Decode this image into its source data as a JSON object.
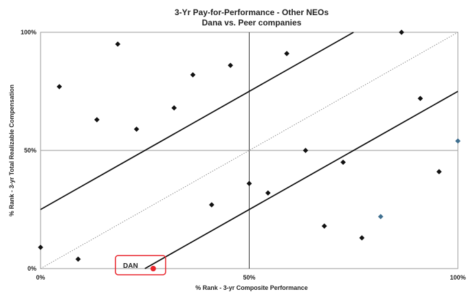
{
  "chart_data": {
    "type": "scatter",
    "title": "3-Yr Pay-for-Performance - Other NEOs",
    "subtitle": "Dana vs. Peer companies",
    "xlabel": "% Rank - 3-yr Composite Performance",
    "ylabel": "% Rank - 3-yr Total Realizable Compensation",
    "xlim": [
      0,
      100
    ],
    "ylim": [
      0,
      100
    ],
    "x_ticks": [
      {
        "value": 0,
        "label": "0%"
      },
      {
        "value": 50,
        "label": "50%"
      },
      {
        "value": 100,
        "label": "100%"
      }
    ],
    "y_ticks": [
      {
        "value": 0,
        "label": "0%"
      },
      {
        "value": 50,
        "label": "50%"
      },
      {
        "value": 100,
        "label": "100%"
      }
    ],
    "grid": "quadrant lines at 50%",
    "reference_lines": [
      {
        "kind": "upper band",
        "style": "solid",
        "from": [
          0,
          25
        ],
        "to": [
          75,
          100
        ]
      },
      {
        "kind": "diagonal",
        "style": "dotted",
        "from": [
          0,
          0
        ],
        "to": [
          100,
          100
        ]
      },
      {
        "kind": "lower band",
        "style": "solid",
        "from": [
          25,
          0
        ],
        "to": [
          100,
          75
        ]
      }
    ],
    "series": [
      {
        "marker": "diamond",
        "color": "#111111",
        "points": [
          {
            "x": 0,
            "y": 9
          },
          {
            "x": 4.5,
            "y": 77
          },
          {
            "x": 9,
            "y": 4
          },
          {
            "x": 13.5,
            "y": 63
          },
          {
            "x": 18.5,
            "y": 95
          },
          {
            "x": 23,
            "y": 59
          },
          {
            "x": 32,
            "y": 68
          },
          {
            "x": 36.5,
            "y": 82
          },
          {
            "x": 41,
            "y": 27
          },
          {
            "x": 45.5,
            "y": 86
          },
          {
            "x": 50,
            "y": 36
          },
          {
            "x": 54.5,
            "y": 32
          },
          {
            "x": 59,
            "y": 91
          },
          {
            "x": 63.5,
            "y": 50
          },
          {
            "x": 68,
            "y": 18
          },
          {
            "x": 72.5,
            "y": 45
          },
          {
            "x": 77,
            "y": 13
          },
          {
            "x": 86.5,
            "y": 100
          },
          {
            "x": 91,
            "y": 72
          },
          {
            "x": 95.5,
            "y": 41
          }
        ]
      },
      {
        "marker": "diamond",
        "color": "#3f6f8f",
        "points": [
          {
            "x": 81.5,
            "y": 22
          },
          {
            "x": 100,
            "y": 54
          }
        ]
      }
    ],
    "highlight": {
      "label": "DAN",
      "x": 27,
      "y": 0,
      "marker": "circle",
      "color": "#e8242b"
    }
  }
}
